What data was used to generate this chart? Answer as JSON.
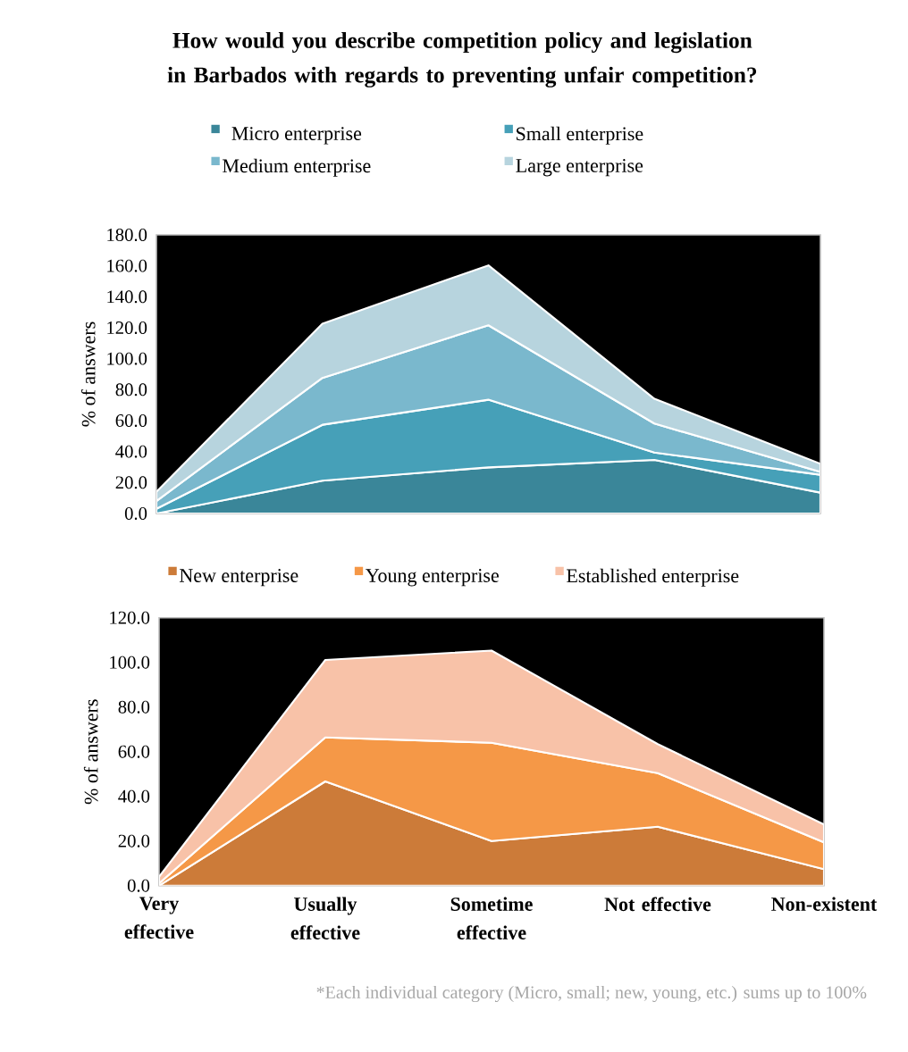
{
  "chart_data": [
    {
      "type": "area",
      "stacked": true,
      "title": "How would you describe competition policy and legislation in Barbados with regards to preventing unfair competition?",
      "ylabel": "% of answers",
      "categories": [
        null,
        null,
        null,
        null,
        null
      ],
      "series": [
        {
          "name": "Micro enterprise",
          "color": "#3a8699",
          "values": [
            0,
            21.2,
            29.8,
            34.6,
            13.5
          ]
        },
        {
          "name": "Small enterprise",
          "color": "#46a0b8",
          "values": [
            3,
            36.1,
            43.7,
            4.8,
            11.5
          ]
        },
        {
          "name": "Medium enterprise",
          "color": "#7ab8cd",
          "values": [
            5,
            30.3,
            48.1,
            18.7,
            1.9
          ]
        },
        {
          "name": "Large enterprise",
          "color": "#b7d4de",
          "values": [
            6,
            35.0,
            38.7,
            16.0,
            5.2
          ]
        }
      ],
      "ylim": [
        0,
        180
      ],
      "yticks": [
        {
          "value": 0,
          "label": "0.0"
        },
        {
          "value": 20,
          "label": "20.0"
        },
        {
          "value": 40,
          "label": "40.0"
        },
        {
          "value": 60,
          "label": "60.0"
        },
        {
          "value": 80,
          "label": "80.0"
        },
        {
          "value": 100,
          "label": "100.0"
        },
        {
          "value": 120,
          "label": "120.0"
        },
        {
          "value": 140,
          "label": "140.0"
        },
        {
          "value": 160,
          "label": "160.0"
        },
        {
          "value": 180,
          "label": "180.0"
        }
      ],
      "legend": "top",
      "tick_labels": "y"
    },
    {
      "type": "area",
      "stacked": true,
      "ylabel": "% of answers",
      "categories": [
        "Very effective",
        "Usually effective",
        "Sometime effective",
        "Not effective",
        "Non-existent"
      ],
      "series": [
        {
          "name": "New enterprise",
          "color": "#cc7b39",
          "values": [
            0,
            46.7,
            20.0,
            26.4,
            7.4
          ]
        },
        {
          "name": "Young enterprise",
          "color": "#f59847",
          "values": [
            1,
            19.7,
            44.0,
            24.0,
            12.0
          ]
        },
        {
          "name": "Established enterprise",
          "color": "#f8c2a8",
          "values": [
            3,
            34.7,
            41.3,
            13.0,
            8.0
          ]
        }
      ],
      "ylim": [
        0,
        120
      ],
      "yticks": [
        {
          "value": 0,
          "label": "0.0"
        },
        {
          "value": 20,
          "label": "20.0"
        },
        {
          "value": 40,
          "label": "40.0"
        },
        {
          "value": 60,
          "label": "60.0"
        },
        {
          "value": 80,
          "label": "80.0"
        },
        {
          "value": 100,
          "label": "100.0"
        },
        {
          "value": 120,
          "label": "120.0"
        }
      ],
      "legend": "top",
      "annotations": [
        "*Each individual category (Micro, small; new, young, etc.) sums up to 100%"
      ]
    }
  ]
}
